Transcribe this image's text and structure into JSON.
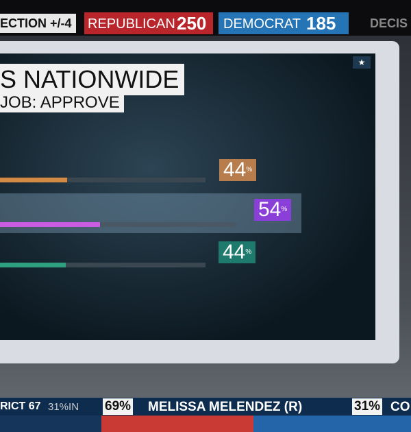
{
  "top_bar": {
    "margin": "ECTION +/-4",
    "republican_label": "REPUBLICAN",
    "republican_count": "250",
    "democrat_label": "DEMOCRAT",
    "democrat_count": "185",
    "brand": "DECIS"
  },
  "screen": {
    "title": "S NATIONWIDE",
    "subtitle": "JOB: APPROVE",
    "bars": [
      {
        "number": "44",
        "unit": "%"
      },
      {
        "number": "54",
        "unit": "%"
      },
      {
        "number": "44",
        "unit": "%"
      }
    ]
  },
  "ticker": {
    "district": "RICT 67",
    "reporting": "31%IN",
    "leader_pct": "69%",
    "leader_name": "MELISSA MELENDEZ (R)",
    "other_pct": "31%",
    "other_name": "CO"
  }
}
